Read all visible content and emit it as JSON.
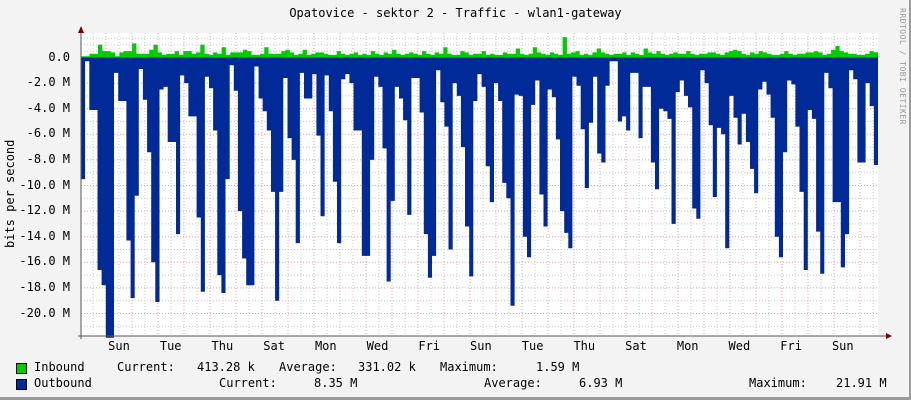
{
  "title": "Opatovice - sektor 2 - Traffic - wlan1-gateway",
  "watermark": "RRDTOOL / TOBI OETIKER",
  "colors": {
    "inbound": "#00cc00",
    "outbound": "#002a97",
    "grid_major": "#e8a0a0",
    "grid_minor": "#c8c8c8",
    "axis": "#7a0000",
    "background": "#f3f3f3",
    "canvas": "#ffffff"
  },
  "legend": {
    "inbound": {
      "label": "Inbound",
      "current_label": "Current:",
      "current": "413.28 k",
      "average_label": "Average:",
      "average": "331.02 k",
      "maximum_label": "Maximum:",
      "maximum": "1.59 M"
    },
    "outbound": {
      "label": "Outbound",
      "current_label": "Current:",
      "current": "8.35 M",
      "average_label": "Average:",
      "average": "6.93 M",
      "maximum_label": "Maximum:",
      "maximum": "21.91 M"
    }
  },
  "chart_data": {
    "type": "area",
    "title": "Opatovice - sektor 2 - Traffic - wlan1-gateway",
    "xlabel": "",
    "ylabel": "bits per second",
    "ylim": [
      -21.8,
      1.9
    ],
    "y_unit": "M bits/s (outbound drawn negative)",
    "yticks": [
      "0.0",
      "-2.0 M",
      "-4.0 M",
      "-6.0 M",
      "-8.0 M",
      "-10.0 M",
      "-12.0 M",
      "-14.0 M",
      "-16.0 M",
      "-18.0 M",
      "-20.0 M"
    ],
    "xticks": [
      "Sun",
      "Tue",
      "Thu",
      "Sat",
      "Mon",
      "Wed",
      "Fri",
      "Sun",
      "Tue",
      "Thu",
      "Sat",
      "Mon",
      "Wed",
      "Fri",
      "Sun"
    ],
    "grid": true,
    "legend_position": "bottom",
    "series": [
      {
        "name": "Outbound",
        "color": "#002a97",
        "values": [
          -9.5,
          -0.3,
          -4.1,
          -4.1,
          -16.6,
          -17.8,
          -21.9,
          -21.9,
          -1.2,
          -3.4,
          -3.4,
          -14.3,
          -18.8,
          -10.8,
          -0.9,
          -3.3,
          -7.4,
          -16.0,
          -19.1,
          -2.5,
          -2.3,
          -6.6,
          -6.6,
          -13.8,
          -1.4,
          -2.0,
          -4.6,
          -4.6,
          -12.5,
          -18.3,
          -1.5,
          -2.4,
          -5.7,
          -17.0,
          -18.4,
          -9.5,
          -0.6,
          -2.6,
          -12.0,
          -15.7,
          -17.8,
          -17.8,
          -0.7,
          -3.2,
          -4.2,
          -5.7,
          -10.5,
          -19.0,
          -10.5,
          -1.6,
          -6.3,
          -8.0,
          -14.5,
          -1.2,
          -3.2,
          -3.2,
          -1.3,
          -6.1,
          -12.4,
          -1.4,
          -4.2,
          -9.7,
          -14.5,
          -1.7,
          -1.3,
          -2.0,
          -5.7,
          -5.7,
          -15.5,
          -15.5,
          -8.0,
          -1.5,
          -2.3,
          -7.1,
          -17.5,
          -11.2,
          -2.3,
          -3.2,
          -4.9,
          -12.3,
          -1.6,
          -1.6,
          -4.3,
          -13.8,
          -17.2,
          -15.5,
          -1.0,
          -3.5,
          -5.4,
          -15.0,
          -2.0,
          -3.0,
          -7.0,
          -13.2,
          -17.1,
          -3.4,
          -1.3,
          -2.3,
          -8.5,
          -11.3,
          -2.0,
          -3.4,
          -9.8,
          -11.0,
          -19.4,
          -2.9,
          -3.0,
          -14.0,
          -15.6,
          -3.7,
          -1.8,
          -10.7,
          -13.2,
          -2.5,
          -3.1,
          -6.4,
          -12.0,
          -13.7,
          -14.9,
          -1.5,
          -2.2,
          -5.6,
          -10.2,
          -5.1,
          -1.5,
          -7.5,
          -8.2,
          -2.2,
          -0.3,
          -0.3,
          -5.0,
          -4.6,
          -5.7,
          -1.2,
          -1.2,
          -6.3,
          -2.3,
          -2.3,
          -8.2,
          -10.3,
          -4.0,
          -4.2,
          -4.8,
          -13.0,
          -2.7,
          -1.8,
          -3.0,
          -3.9,
          -11.8,
          -12.6,
          -1.0,
          -2.0,
          -5.3,
          -10.9,
          -5.5,
          -6.0,
          -14.9,
          -3.0,
          -4.7,
          -6.8,
          -4.4,
          -6.6,
          -8.7,
          -10.6,
          -2.5,
          -1.9,
          -2.9,
          -4.7,
          -14.0,
          -15.6,
          -7.4,
          -1.8,
          -2.1,
          -5.4,
          -10.5,
          -16.6,
          -4.1,
          -4.8,
          -13.6,
          -16.9,
          -1.2,
          -2.4,
          -11.3,
          -11.3,
          -16.4,
          -13.8,
          -1.0,
          -1.7,
          -8.2,
          -8.2,
          -2.0,
          -3.8,
          -8.4
        ]
      },
      {
        "name": "Inbound",
        "color": "#00cc00",
        "values": [
          0.1,
          0.1,
          0.3,
          0.3,
          1.0,
          0.5,
          0.5,
          0.4,
          0.1,
          0.4,
          0.5,
          0.5,
          1.1,
          0.3,
          0.3,
          0.3,
          0.6,
          1.0,
          0.4,
          0.2,
          0.3,
          0.3,
          0.5,
          0.2,
          0.5,
          0.5,
          0.3,
          0.4,
          1.0,
          0.3,
          0.2,
          0.4,
          0.3,
          0.8,
          0.2,
          0.4,
          0.4,
          0.4,
          0.6,
          0.5,
          0.2,
          0.2,
          0.3,
          0.8,
          0.3,
          0.3,
          0.3,
          0.5,
          0.6,
          0.4,
          0.2,
          0.3,
          0.6,
          0.2,
          0.3,
          0.4,
          0.4,
          0.3,
          0.2,
          0.2,
          0.5,
          0.3,
          0.2,
          0.3,
          0.4,
          0.2,
          0.3,
          0.2,
          0.5,
          0.3,
          0.2,
          0.4,
          0.3,
          0.6,
          0.3,
          0.2,
          0.3,
          0.4,
          0.3,
          0.2,
          0.5,
          0.3,
          0.2,
          0.4,
          0.3,
          0.8,
          0.3,
          0.2,
          0.2,
          0.5,
          0.4,
          0.2,
          0.3,
          0.3,
          0.5,
          0.2,
          0.3,
          0.2,
          0.2,
          0.4,
          0.3,
          0.3,
          0.7,
          0.3,
          0.2,
          0.3,
          0.8,
          0.4,
          0.3,
          0.2,
          0.4,
          0.3,
          0.2,
          1.59,
          0.3,
          0.4,
          0.5,
          0.2,
          0.3,
          0.2,
          0.4,
          0.7,
          0.4,
          0.3,
          0.2,
          0.3,
          0.3,
          0.4,
          0.2,
          0.4,
          0.3,
          0.2,
          0.7,
          0.4,
          0.3,
          0.5,
          0.3,
          0.2,
          0.3,
          0.4,
          0.3,
          0.3,
          0.5,
          0.3,
          0.2,
          0.3,
          0.3,
          0.4,
          0.4,
          0.3,
          0.2,
          0.4,
          0.5,
          0.6,
          0.5,
          0.3,
          0.2,
          0.4,
          0.3,
          0.5,
          0.4,
          0.3,
          0.2,
          0.2,
          0.3,
          0.5,
          0.3,
          0.2,
          0.3,
          0.3,
          0.4,
          0.4,
          0.5,
          0.4,
          0.2,
          0.3,
          0.6,
          0.9,
          0.5,
          0.4,
          0.3,
          0.3,
          0.2,
          0.2,
          0.3,
          0.5,
          0.41
        ]
      }
    ]
  }
}
